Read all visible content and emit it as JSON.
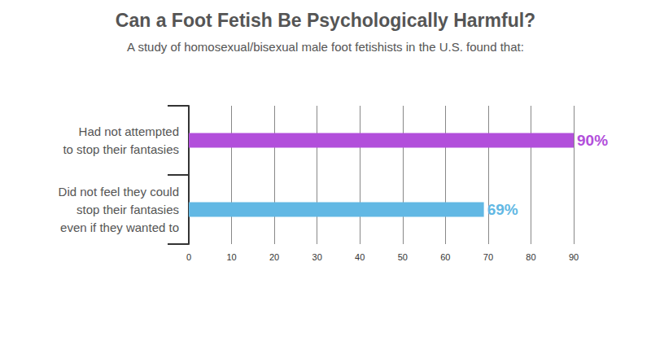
{
  "chart_data": {
    "type": "bar",
    "title": "Can a Foot Fetish Be Psychologically Harmful?",
    "subtitle": "A study of homosexual/bisexual male foot fetishists in the U.S. found that:",
    "orientation": "horizontal",
    "categories": [
      "Had not attempted\nto stop their fantasies",
      "Did not feel they could\nstop their fantasies\neven if they wanted to"
    ],
    "values": [
      90,
      69
    ],
    "value_labels": [
      "90%",
      "69%"
    ],
    "colors": [
      "#b24fdb",
      "#62b8e4"
    ],
    "xlim": [
      0,
      90
    ],
    "xticks": [
      0,
      10,
      20,
      30,
      40,
      50,
      60,
      70,
      80,
      90
    ],
    "grid": true,
    "data_labels": true
  }
}
